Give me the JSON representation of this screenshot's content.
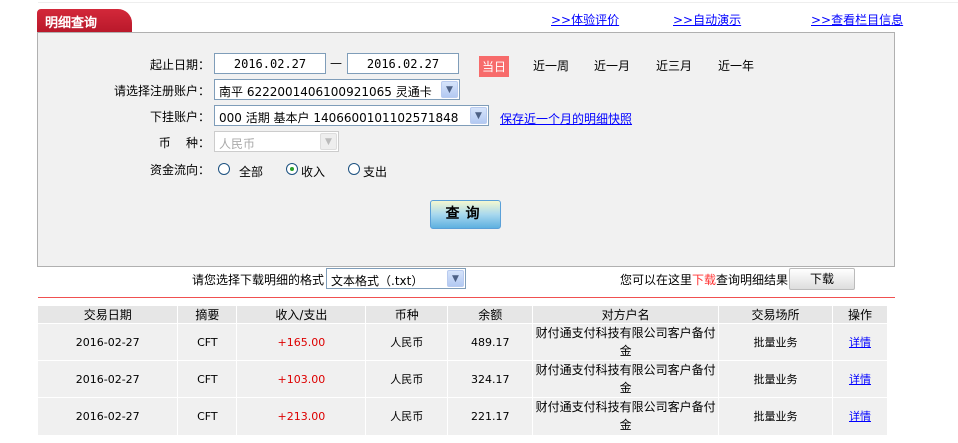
{
  "tab_title": "明细查询",
  "top_links": [
    ">>体验评价",
    ">>自动演示",
    ">>查看栏目信息"
  ],
  "form": {
    "date_label": "起止日期：",
    "start_date": "2016.02.27",
    "date_sep": "—",
    "end_date": "2016.02.27",
    "quick_ranges": [
      "当日",
      "近一周",
      "近一月",
      "近三月",
      "近一年"
    ],
    "reg_account_label": "请选择注册账户：",
    "reg_account_value": "南平  6222001406100921065 灵通卡",
    "sub_account_label": "下挂账户：",
    "sub_account_value": "000 活期 基本户 1406600101102571848",
    "snapshot_link": "保存近一个月的明细快照",
    "currency_label": "币    种：",
    "currency_value": "人民币",
    "flow_label": "资金流向：",
    "flow_options": [
      "全部",
      "收入",
      "支出"
    ],
    "flow_selected": "收入",
    "search_button": "查询"
  },
  "download": {
    "format_label": "请您选择下载明细的格式",
    "format_value": "文本格式（.txt）",
    "hint_prefix": "您可以在这里",
    "hint_highlight": "下载",
    "hint_suffix": "查询明细结果",
    "button": "下载"
  },
  "table": {
    "headers": [
      "交易日期",
      "摘要",
      "收入/支出",
      "币种",
      "余额",
      "对方户名",
      "交易场所",
      "操作"
    ],
    "rows": [
      [
        "2016-02-27",
        "CFT",
        "+165.00",
        "人民币",
        "489.17",
        "财付通支付科技有限公司客户备付金",
        "批量业务",
        "详情"
      ],
      [
        "2016-02-27",
        "CFT",
        "+103.00",
        "人民币",
        "324.17",
        "财付通支付科技有限公司客户备付金",
        "批量业务",
        "详情"
      ],
      [
        "2016-02-27",
        "CFT",
        "+213.00",
        "人民币",
        "221.17",
        "财付通支付科技有限公司客户备付金",
        "批量业务",
        "详情"
      ]
    ]
  },
  "colors": {
    "tab": "#c41f31",
    "today": "#f76b6b",
    "amount": "#dd0000",
    "link": "#0000ff"
  }
}
